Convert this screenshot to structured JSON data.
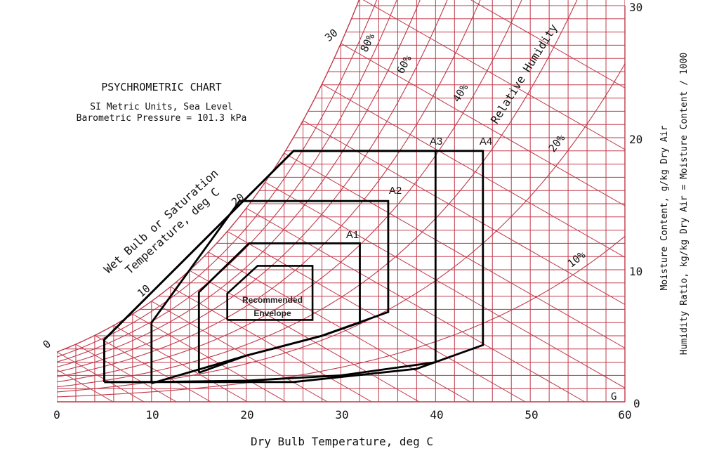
{
  "title": "PSYCHROMETRIC CHART",
  "subtitle_lines": [
    "SI Metric Units, Sea Level",
    "Barometric Pressure = 101.3 kPa"
  ],
  "colors": {
    "grid": "#c0394a",
    "envelope": "#000000",
    "text": "#111111"
  },
  "chart_data": {
    "type": "line",
    "x_axis": {
      "label": "Dry Bulb Temperature, deg C",
      "range": [
        0,
        60
      ],
      "ticks": [
        "0",
        "10",
        "20",
        "30",
        "40",
        "50",
        "60"
      ]
    },
    "y_axis": {
      "label_lines": [
        "Moisture Content, g/kg Dry Air",
        "Humidity Ratio, kg/kg Dry Air = Moisture Content / 1000"
      ],
      "range": [
        0,
        30
      ],
      "ticks": [
        "0",
        "10",
        "20",
        "30"
      ],
      "position": "right"
    },
    "wet_bulb": {
      "label_lines": [
        "Wet Bulb or Saturation",
        "Temperature, deg C"
      ],
      "ticks": [
        "0",
        "10",
        "20",
        "30"
      ]
    },
    "relative_humidity": {
      "label": "Relative Humidity",
      "labels": [
        "80%",
        "60%",
        "40%",
        "20%",
        "10%"
      ],
      "curves_percent": [
        10,
        20,
        30,
        40,
        50,
        60,
        70,
        80,
        90,
        100
      ]
    },
    "envelopes": [
      {
        "name": "Recommended Envelope",
        "label_lines": [
          "Recommended",
          "Envelope"
        ],
        "points": [
          [
            18,
            6.2
          ],
          [
            18,
            8.2
          ],
          [
            21.2,
            10.3
          ],
          [
            27,
            10.3
          ],
          [
            27,
            6.2
          ],
          [
            18,
            6.2
          ]
        ]
      },
      {
        "name": "A1",
        "label": "A1",
        "points": [
          [
            15,
            2.2
          ],
          [
            15,
            8.3
          ],
          [
            20.3,
            12
          ],
          [
            32,
            12
          ],
          [
            32,
            6
          ],
          [
            28,
            5
          ],
          [
            20,
            3.5
          ],
          [
            15,
            2.2
          ]
        ]
      },
      {
        "name": "A2",
        "label": "A2",
        "points": [
          [
            10,
            1.4
          ],
          [
            10,
            6
          ],
          [
            19.3,
            15.2
          ],
          [
            35,
            15.2
          ],
          [
            35,
            6.8
          ],
          [
            28,
            5
          ],
          [
            20,
            3.5
          ],
          [
            10,
            1.4
          ]
        ]
      },
      {
        "name": "A3",
        "label": "A3",
        "points": [
          [
            5,
            1.5
          ],
          [
            5,
            4.7
          ],
          [
            25,
            19
          ],
          [
            40,
            19
          ],
          [
            40,
            3
          ],
          [
            30,
            2
          ],
          [
            20,
            1.6
          ],
          [
            10,
            1.5
          ],
          [
            5,
            1.5
          ]
        ]
      },
      {
        "name": "A4",
        "label": "A4",
        "points": [
          [
            5,
            1.5
          ],
          [
            25,
            1.5
          ],
          [
            38,
            2.5
          ],
          [
            45,
            4.3
          ],
          [
            45,
            19
          ],
          [
            25,
            19
          ],
          [
            5,
            4.7
          ],
          [
            5,
            1.5
          ]
        ]
      }
    ]
  },
  "footer_mark": "G"
}
